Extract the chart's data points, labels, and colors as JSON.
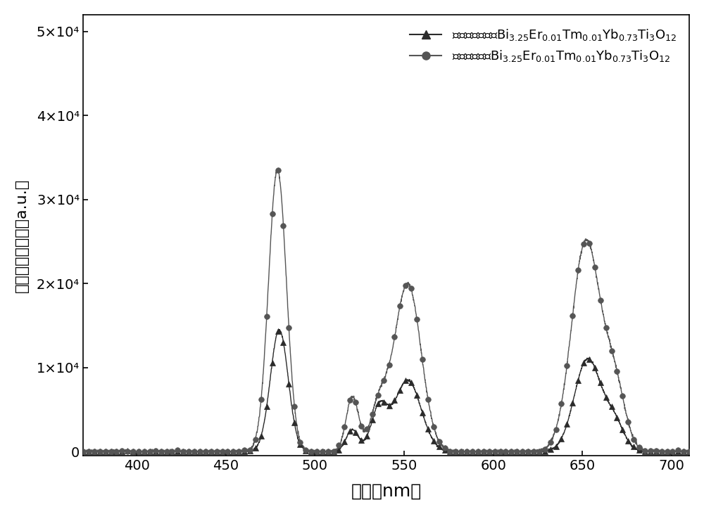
{
  "xlim": [
    370,
    710
  ],
  "ylim": [
    -500,
    52000
  ],
  "xlabel": "波长（nm）",
  "ylabel": "上转换发射强度（a.u.）",
  "yticks": [
    0,
    10000,
    20000,
    30000,
    40000,
    50000
  ],
  "ytick_labels": [
    "0",
    "1×10⁴",
    "2×10⁴",
    "3×10⁴",
    "4×10⁴",
    "5×10⁴"
  ],
  "xticks": [
    400,
    450,
    500,
    550,
    600,
    650,
    700
  ],
  "line1_color": "#2b2b2b",
  "line2_color": "#555555",
  "background_color": "#ffffff",
  "xlabel_fontsize": 18,
  "ylabel_fontsize": 16,
  "tick_fontsize": 14,
  "legend_fontsize": 13,
  "n_markers": 110
}
